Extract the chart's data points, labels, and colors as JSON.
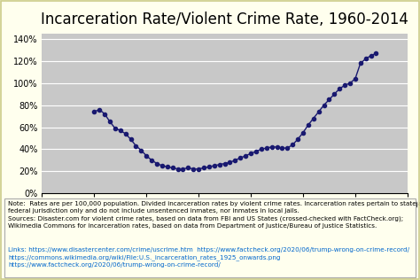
{
  "title": "Incarceration Rate/Violent Crime Rate, 1960-2014",
  "title_fontsize": 12,
  "xlim": [
    1950,
    2020
  ],
  "ylim": [
    0,
    1.45
  ],
  "xticks": [
    1950,
    1960,
    1970,
    1980,
    1990,
    2000,
    2010,
    2020
  ],
  "ytick_labels": [
    "0%",
    "20%",
    "40%",
    "60%",
    "80%",
    "100%",
    "120%",
    "140%"
  ],
  "ytick_values": [
    0,
    0.2,
    0.4,
    0.6,
    0.8,
    1.0,
    1.2,
    1.4
  ],
  "line_color": "#191970",
  "marker_size": 3,
  "bg_color": "#c8c8c8",
  "outer_bg": "#ffffee",
  "note_text_black": "Note:  Rates are per 100,000 population. Divided incarceration rates by violent crime rates. Incarceration rates pertain to state and\nfederal jurisdiction only and do not include unsentenced inmates, nor inmates in local jails.\nSources: Disaster.com for violent crime rates, based on data from FBI and US States (crossed-checked with FactCheck.org);\nWikimedia Commons for incarceration rates, based on data from Department of Justice/Bureau of Justice Statistics.",
  "note_text_links": "Links: https://www.disastercenter.com/crime/uscrime.htm  https://www.factcheck.org/2020/06/trump-wrong-on-crime-record/\nhttps://commons.wikimedia.org/wiki/File:U.S._incarceration_rates_1925_onwards.png\nhttps://www.factcheck.org/2020/06/trump-wrong-on-crime-record/",
  "link_color": "#0066cc",
  "note_fontsize": 5.2,
  "years": [
    1960,
    1961,
    1962,
    1963,
    1964,
    1965,
    1966,
    1967,
    1968,
    1969,
    1970,
    1971,
    1972,
    1973,
    1974,
    1975,
    1976,
    1977,
    1978,
    1979,
    1980,
    1981,
    1982,
    1983,
    1984,
    1985,
    1986,
    1987,
    1988,
    1989,
    1990,
    1991,
    1992,
    1993,
    1994,
    1995,
    1996,
    1997,
    1998,
    1999,
    2000,
    2001,
    2002,
    2003,
    2004,
    2005,
    2006,
    2007,
    2008,
    2009,
    2010,
    2011,
    2012,
    2013,
    2014
  ],
  "values": [
    0.74,
    0.76,
    0.72,
    0.65,
    0.59,
    0.57,
    0.54,
    0.49,
    0.43,
    0.39,
    0.34,
    0.3,
    0.27,
    0.25,
    0.24,
    0.23,
    0.22,
    0.22,
    0.23,
    0.22,
    0.22,
    0.23,
    0.24,
    0.25,
    0.26,
    0.27,
    0.28,
    0.3,
    0.32,
    0.34,
    0.36,
    0.38,
    0.4,
    0.41,
    0.42,
    0.42,
    0.41,
    0.41,
    0.44,
    0.49,
    0.55,
    0.62,
    0.68,
    0.74,
    0.8,
    0.85,
    0.9,
    0.95,
    0.98,
    1.0,
    1.04,
    1.18,
    1.22,
    1.25,
    1.27
  ]
}
